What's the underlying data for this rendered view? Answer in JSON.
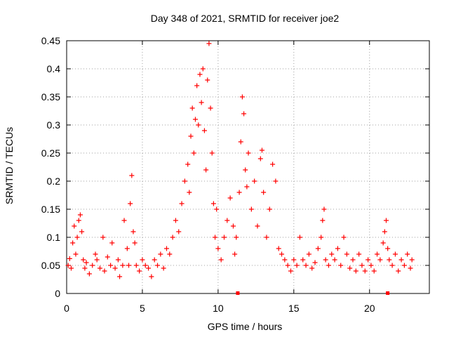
{
  "chart_data": {
    "type": "scatter",
    "title": "Day 348 of 2021, SRMTID for receiver joe2",
    "xlabel": "GPS time / hours",
    "ylabel": "SRMTID / TECUs",
    "xlim": [
      0,
      23.95
    ],
    "ylim": [
      0,
      0.45
    ],
    "xticks": [
      0,
      5,
      10,
      15,
      20
    ],
    "yticks": [
      0,
      0.05,
      0.1,
      0.15,
      0.2,
      0.25,
      0.3,
      0.35,
      0.4,
      0.45
    ],
    "xtick_labels": [
      "0",
      "5",
      "10",
      "15",
      "20"
    ],
    "ytick_labels": [
      "0",
      "0.05",
      "0.1",
      "0.15",
      "0.2",
      "0.25",
      "0.3",
      "0.35",
      "0.4",
      "0.45"
    ],
    "grid": true,
    "marker": "+",
    "marker_color": "#ff0000",
    "legend": "none",
    "baseline_markers_x": [
      11.3,
      21.2
    ],
    "series": [
      {
        "name": "SRMTID",
        "points": [
          [
            0.1,
            0.05
          ],
          [
            0.2,
            0.062
          ],
          [
            0.3,
            0.045
          ],
          [
            0.4,
            0.09
          ],
          [
            0.5,
            0.12
          ],
          [
            0.6,
            0.07
          ],
          [
            0.7,
            0.1
          ],
          [
            0.8,
            0.13
          ],
          [
            0.9,
            0.14
          ],
          [
            1.0,
            0.11
          ],
          [
            1.1,
            0.06
          ],
          [
            1.2,
            0.045
          ],
          [
            1.3,
            0.055
          ],
          [
            1.5,
            0.035
          ],
          [
            1.7,
            0.05
          ],
          [
            1.9,
            0.07
          ],
          [
            2.0,
            0.06
          ],
          [
            2.2,
            0.045
          ],
          [
            2.4,
            0.1
          ],
          [
            2.5,
            0.04
          ],
          [
            2.7,
            0.065
          ],
          [
            2.9,
            0.05
          ],
          [
            3.0,
            0.09
          ],
          [
            3.2,
            0.045
          ],
          [
            3.4,
            0.06
          ],
          [
            3.5,
            0.03
          ],
          [
            3.7,
            0.05
          ],
          [
            3.8,
            0.13
          ],
          [
            4.0,
            0.08
          ],
          [
            4.1,
            0.05
          ],
          [
            4.2,
            0.16
          ],
          [
            4.3,
            0.21
          ],
          [
            4.4,
            0.11
          ],
          [
            4.5,
            0.09
          ],
          [
            4.6,
            0.05
          ],
          [
            4.8,
            0.04
          ],
          [
            5.0,
            0.06
          ],
          [
            5.2,
            0.05
          ],
          [
            5.4,
            0.045
          ],
          [
            5.6,
            0.03
          ],
          [
            5.8,
            0.06
          ],
          [
            6.0,
            0.05
          ],
          [
            6.2,
            0.07
          ],
          [
            6.4,
            0.045
          ],
          [
            6.6,
            0.08
          ],
          [
            6.8,
            0.07
          ],
          [
            7.0,
            0.1
          ],
          [
            7.2,
            0.13
          ],
          [
            7.4,
            0.11
          ],
          [
            7.6,
            0.16
          ],
          [
            7.8,
            0.2
          ],
          [
            8.0,
            0.23
          ],
          [
            8.1,
            0.18
          ],
          [
            8.2,
            0.28
          ],
          [
            8.3,
            0.33
          ],
          [
            8.4,
            0.25
          ],
          [
            8.5,
            0.31
          ],
          [
            8.6,
            0.37
          ],
          [
            8.7,
            0.3
          ],
          [
            8.8,
            0.39
          ],
          [
            8.9,
            0.34
          ],
          [
            9.0,
            0.4
          ],
          [
            9.1,
            0.29
          ],
          [
            9.2,
            0.22
          ],
          [
            9.3,
            0.38
          ],
          [
            9.4,
            0.445
          ],
          [
            9.5,
            0.33
          ],
          [
            9.6,
            0.25
          ],
          [
            9.7,
            0.16
          ],
          [
            9.8,
            0.1
          ],
          [
            9.9,
            0.15
          ],
          [
            10.0,
            0.08
          ],
          [
            10.2,
            0.06
          ],
          [
            10.4,
            0.1
          ],
          [
            10.6,
            0.13
          ],
          [
            10.8,
            0.17
          ],
          [
            11.0,
            0.12
          ],
          [
            11.1,
            0.07
          ],
          [
            11.2,
            0.1
          ],
          [
            11.4,
            0.18
          ],
          [
            11.5,
            0.27
          ],
          [
            11.6,
            0.35
          ],
          [
            11.7,
            0.32
          ],
          [
            11.8,
            0.22
          ],
          [
            11.9,
            0.19
          ],
          [
            12.0,
            0.25
          ],
          [
            12.2,
            0.15
          ],
          [
            12.4,
            0.2
          ],
          [
            12.6,
            0.12
          ],
          [
            12.8,
            0.24
          ],
          [
            12.9,
            0.255
          ],
          [
            13.0,
            0.18
          ],
          [
            13.2,
            0.1
          ],
          [
            13.4,
            0.15
          ],
          [
            13.6,
            0.23
          ],
          [
            13.8,
            0.2
          ],
          [
            14.0,
            0.08
          ],
          [
            14.2,
            0.07
          ],
          [
            14.4,
            0.06
          ],
          [
            14.6,
            0.05
          ],
          [
            14.8,
            0.04
          ],
          [
            15.0,
            0.06
          ],
          [
            15.2,
            0.05
          ],
          [
            15.4,
            0.1
          ],
          [
            15.6,
            0.06
          ],
          [
            15.8,
            0.05
          ],
          [
            16.0,
            0.07
          ],
          [
            16.2,
            0.045
          ],
          [
            16.4,
            0.055
          ],
          [
            16.6,
            0.08
          ],
          [
            16.8,
            0.1
          ],
          [
            16.9,
            0.13
          ],
          [
            17.0,
            0.15
          ],
          [
            17.1,
            0.06
          ],
          [
            17.3,
            0.05
          ],
          [
            17.5,
            0.07
          ],
          [
            17.7,
            0.06
          ],
          [
            17.9,
            0.08
          ],
          [
            18.1,
            0.05
          ],
          [
            18.3,
            0.1
          ],
          [
            18.5,
            0.07
          ],
          [
            18.7,
            0.045
          ],
          [
            18.9,
            0.06
          ],
          [
            19.1,
            0.04
          ],
          [
            19.3,
            0.07
          ],
          [
            19.5,
            0.05
          ],
          [
            19.7,
            0.04
          ],
          [
            19.9,
            0.06
          ],
          [
            20.1,
            0.05
          ],
          [
            20.3,
            0.04
          ],
          [
            20.5,
            0.07
          ],
          [
            20.7,
            0.06
          ],
          [
            20.9,
            0.09
          ],
          [
            21.0,
            0.11
          ],
          [
            21.1,
            0.13
          ],
          [
            21.2,
            0.08
          ],
          [
            21.3,
            0.06
          ],
          [
            21.5,
            0.05
          ],
          [
            21.7,
            0.07
          ],
          [
            21.9,
            0.04
          ],
          [
            22.1,
            0.06
          ],
          [
            22.3,
            0.05
          ],
          [
            22.5,
            0.07
          ],
          [
            22.7,
            0.045
          ],
          [
            22.8,
            0.06
          ]
        ]
      }
    ]
  }
}
